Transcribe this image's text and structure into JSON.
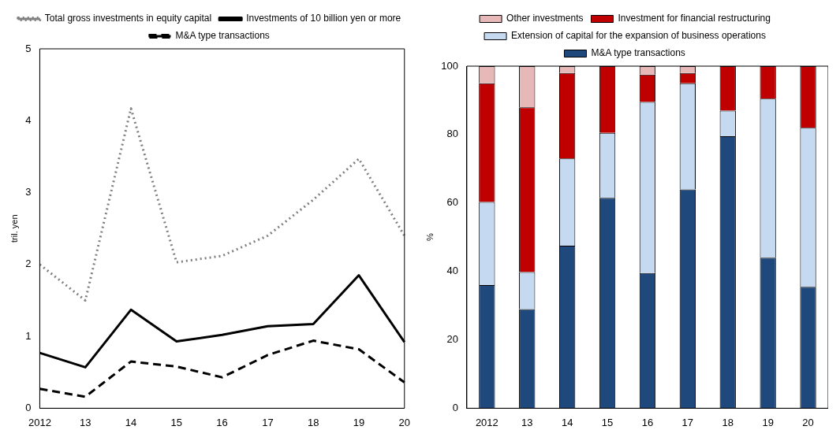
{
  "chart_data": [
    {
      "type": "line",
      "ylabel": "tril. yen",
      "categories": [
        "2012",
        "13",
        "14",
        "15",
        "16",
        "17",
        "18",
        "19",
        "20"
      ],
      "ylim": [
        0,
        5
      ],
      "yticks": [
        0,
        1,
        2,
        3,
        4,
        5
      ],
      "grid": false,
      "legend": "top",
      "marker": "none",
      "series": [
        {
          "name": "Total gross investments in equity capital",
          "color": "#808080",
          "line_style": "dotted",
          "values": [
            2.0,
            1.5,
            4.17,
            2.03,
            2.12,
            2.4,
            2.9,
            3.47,
            2.4
          ]
        },
        {
          "name": "Investments of 10 billion yen or more",
          "color": "#000000",
          "line_style": "solid",
          "values": [
            0.77,
            0.57,
            1.37,
            0.93,
            1.02,
            1.14,
            1.17,
            1.85,
            0.92
          ]
        },
        {
          "name": "M&A type transactions",
          "color": "#000000",
          "line_style": "dashed",
          "values": [
            0.27,
            0.16,
            0.65,
            0.58,
            0.43,
            0.74,
            0.94,
            0.82,
            0.36
          ]
        }
      ]
    },
    {
      "type": "bar",
      "stacked": true,
      "ylabel": "%",
      "categories": [
        "2012",
        "13",
        "14",
        "15",
        "16",
        "17",
        "18",
        "19",
        "20"
      ],
      "ylim": [
        0,
        100
      ],
      "yticks": [
        0,
        20,
        40,
        60,
        80,
        100
      ],
      "grid": false,
      "legend": "top",
      "series": [
        {
          "name": "M&A type transactions",
          "color": "#1f497d",
          "values": [
            36,
            29,
            47.5,
            61.5,
            39.5,
            64,
            79.5,
            44,
            35.5
          ]
        },
        {
          "name": "Extension of capital for the expansion of business operations",
          "color": "#c5d9f1",
          "values": [
            24.3,
            10.8,
            25.5,
            19,
            50,
            31,
            7.5,
            46.5,
            46.5
          ]
        },
        {
          "name": "Investment for financial restructuring",
          "color": "#c00000",
          "values": [
            34.7,
            48.2,
            25,
            19.5,
            8,
            3,
            13,
            9.5,
            18
          ]
        },
        {
          "name": "Other investments",
          "color": "#e6b9b8",
          "values": [
            5,
            12,
            2,
            0,
            2.5,
            2,
            0,
            0,
            0
          ]
        }
      ]
    }
  ]
}
